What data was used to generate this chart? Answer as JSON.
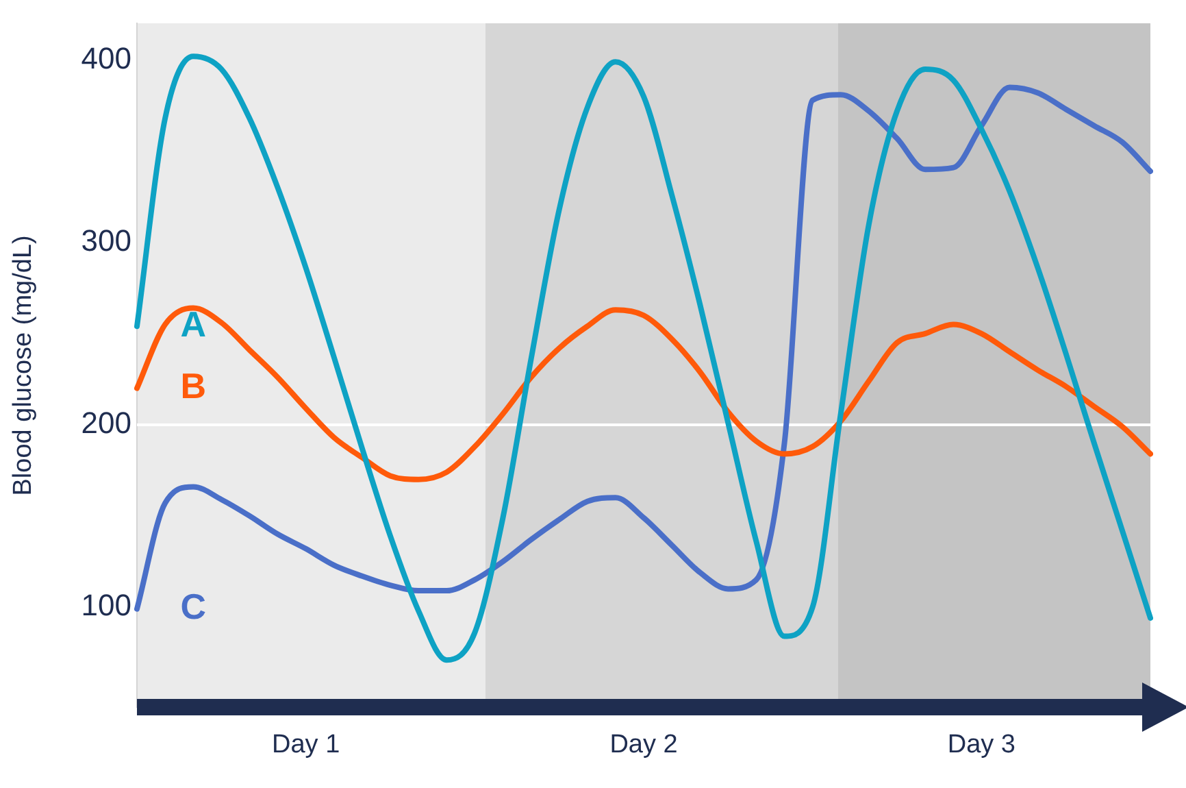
{
  "chart_data": {
    "type": "line",
    "ylabel": "Blood glucose (mg/dL)",
    "categories": [
      null,
      null,
      null,
      null,
      null,
      null,
      "Day 1",
      null,
      null,
      null,
      null,
      null,
      null,
      null,
      null,
      null,
      null,
      null,
      "Day 2",
      null,
      null,
      null,
      null,
      null,
      null,
      null,
      null,
      null,
      null,
      null,
      "Day 3",
      null,
      null,
      null,
      null,
      null,
      null
    ],
    "ylim": [
      45,
      420
    ],
    "yticks": [
      100,
      200,
      300,
      400
    ],
    "grid": false,
    "legend": false,
    "marker": "none",
    "line_style": "solid",
    "ref_lines": [
      {
        "axis": "y",
        "value": 200,
        "color": "#ffffff"
      }
    ],
    "series": [
      {
        "name": "A",
        "color": "#0ea2c4",
        "values": [
          254,
          368,
          402,
          395,
          368,
          330,
          286,
          237,
          187,
          139,
          98,
          71,
          86,
          149,
          236,
          318,
          374,
          399,
          380,
          326,
          266,
          201,
          136,
          84,
          100,
          206,
          310,
          372,
          395,
          389,
          362,
          328,
          286,
          239,
          190,
          142,
          94
        ]
      },
      {
        "name": "B",
        "color": "#ff5a0a",
        "values": [
          220,
          255,
          264,
          256,
          241,
          226,
          209,
          193,
          182,
          172,
          170,
          174,
          188,
          206,
          226,
          242,
          254,
          263,
          260,
          247,
          229,
          207,
          191,
          184,
          188,
          202,
          224,
          245,
          250,
          255,
          250,
          240,
          230,
          221,
          210,
          199,
          184
        ]
      },
      {
        "name": "C",
        "color": "#4a6fc8",
        "values": [
          99,
          157,
          166,
          159,
          150,
          140,
          132,
          123,
          117,
          112,
          109,
          109,
          115,
          125,
          137,
          148,
          158,
          160,
          149,
          134,
          119,
          110,
          115,
          190,
          378,
          381,
          372,
          357,
          340,
          341,
          364,
          385,
          382,
          373,
          364,
          355,
          339
        ]
      }
    ]
  }
}
